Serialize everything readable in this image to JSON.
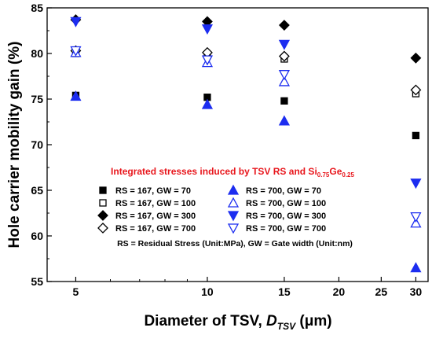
{
  "chart_data": {
    "type": "scatter",
    "title": "",
    "xlabel": {
      "prefix": "Diameter of TSV, ",
      "symbol": "D",
      "subscript": "TSV",
      "unit": " (μm)"
    },
    "ylabel": "Hole carrier mobility gain (%)",
    "x_scale": "log",
    "xlim": [
      4.3,
      32
    ],
    "ylim": [
      55,
      85
    ],
    "x_ticks": [
      5,
      10,
      15,
      20,
      25,
      30
    ],
    "y_ticks": [
      55,
      60,
      65,
      70,
      75,
      80,
      85
    ],
    "x": [
      5,
      10,
      15,
      30
    ],
    "series": [
      {
        "name": "RS = 167, GW = 70",
        "marker": "square",
        "fill": "filled",
        "color": "#000000",
        "values": [
          75.4,
          75.2,
          74.8,
          71.0
        ]
      },
      {
        "name": "RS = 167, GW = 100",
        "marker": "square",
        "fill": "open",
        "color": "#000000",
        "values": [
          80.0,
          79.8,
          79.4,
          75.6
        ]
      },
      {
        "name": "RS = 167, GW = 300",
        "marker": "diamond",
        "fill": "filled",
        "color": "#000000",
        "values": [
          83.7,
          83.5,
          83.1,
          79.5
        ]
      },
      {
        "name": "RS = 167, GW = 700",
        "marker": "diamond",
        "fill": "open",
        "color": "#000000",
        "values": [
          80.3,
          80.1,
          79.7,
          76.0
        ]
      },
      {
        "name": "RS = 700, GW = 70",
        "marker": "triangle-up",
        "fill": "filled",
        "color": "#1c2df0",
        "values": [
          75.3,
          74.4,
          72.6,
          56.5
        ]
      },
      {
        "name": "RS = 700, GW = 100",
        "marker": "triangle-up",
        "fill": "open",
        "color": "#1c2df0",
        "values": [
          80.1,
          79.0,
          76.9,
          61.4
        ]
      },
      {
        "name": "RS = 700, GW = 300",
        "marker": "triangle-down",
        "fill": "filled",
        "color": "#1c2df0",
        "values": [
          83.5,
          82.7,
          81.0,
          65.8
        ]
      },
      {
        "name": "RS = 700, GW = 700",
        "marker": "triangle-down",
        "fill": "open",
        "color": "#1c2df0",
        "values": [
          80.3,
          79.3,
          77.7,
          62.1
        ]
      }
    ],
    "annotation_title": {
      "text": "Integrated stresses induced by TSV RS and Si",
      "sub1": "0.75",
      "mid": "Ge",
      "sub2": "0.25",
      "color": "#e8161c"
    },
    "annotation_note": "RS = Residual Stress (Unit:MPa), GW = Gate width (Unit:nm)",
    "legend_placement": "inside-center",
    "grid": false
  }
}
